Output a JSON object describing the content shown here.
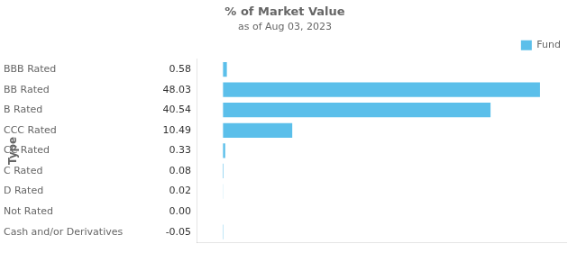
{
  "chart_data": {
    "type": "bar",
    "orientation": "horizontal",
    "title": "% of Market Value",
    "subtitle": "as of Aug 03, 2023",
    "ylabel": "Type",
    "categories": [
      "BBB Rated",
      "BB Rated",
      "B Rated",
      "CCC Rated",
      "CC Rated",
      "C Rated",
      "D Rated",
      "Not Rated",
      "Cash and/or Derivatives"
    ],
    "series": [
      {
        "name": "Fund",
        "color": "#5bbfea",
        "values": [
          0.58,
          48.03,
          40.54,
          10.49,
          0.33,
          0.08,
          0.02,
          0.0,
          -0.05
        ],
        "value_labels": [
          "0.58",
          "48.03",
          "40.54",
          "10.49",
          "0.33",
          "0.08",
          "0.02",
          "0.00",
          "-0.05"
        ]
      }
    ],
    "xlim": [
      -4,
      52
    ],
    "data_labels": true,
    "tick_labels": "y",
    "grid": false,
    "legend": "upper right"
  }
}
